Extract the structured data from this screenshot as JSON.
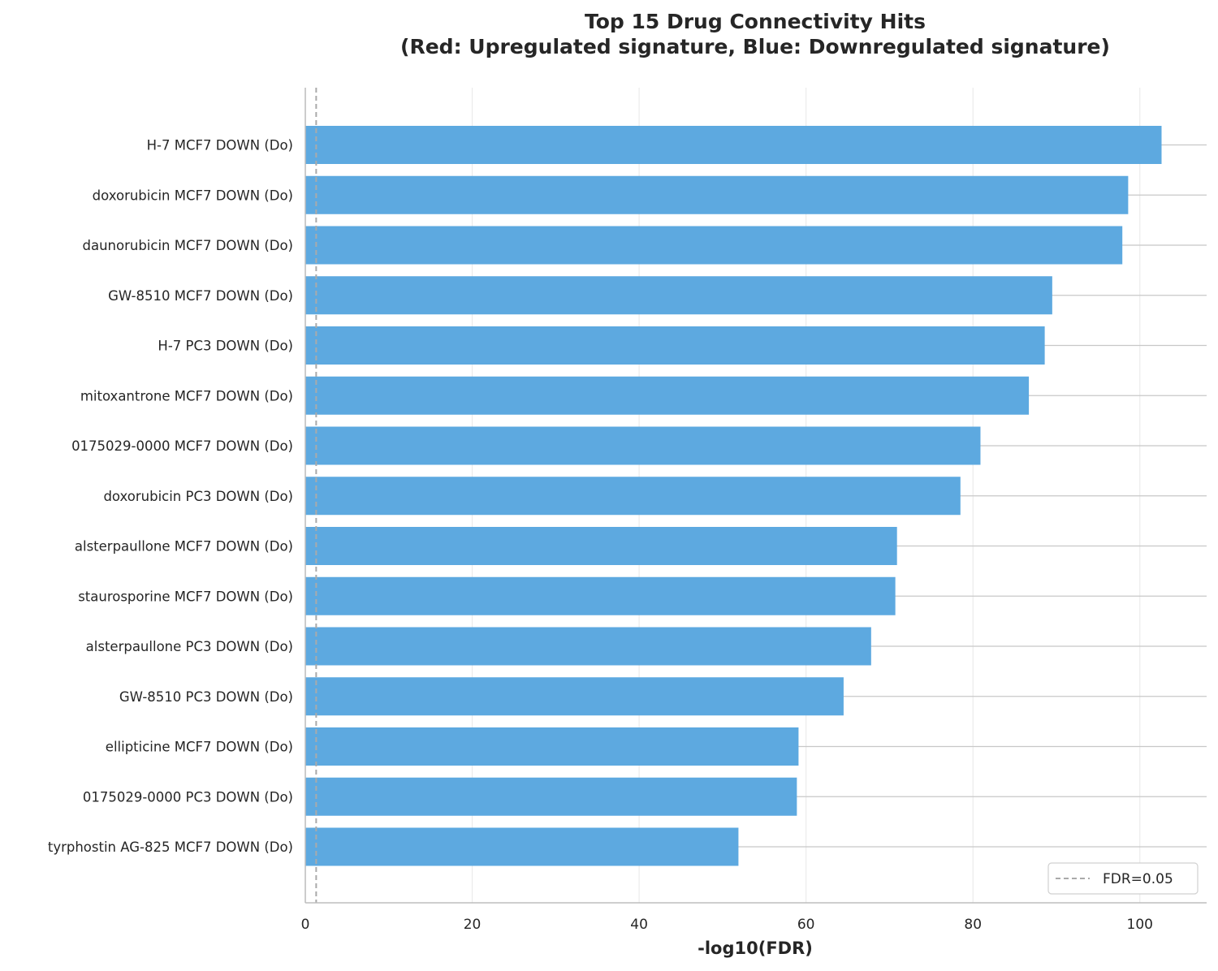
{
  "chart_data": {
    "type": "bar",
    "orientation": "horizontal",
    "title": "Top 15 Drug Connectivity Hits",
    "subtitle": "(Red: Upregulated signature, Blue: Downregulated signature)",
    "xlabel": "-log10(FDR)",
    "ylabel": "",
    "xlim": [
      0,
      108
    ],
    "xticks": [
      0,
      20,
      40,
      60,
      80,
      100
    ],
    "grid": true,
    "bar_color": "#5DA9E0",
    "threshold": {
      "label": "FDR=0.05",
      "value": 1.3,
      "color": "#aaaaaa",
      "style": "dashed"
    },
    "legend": {
      "position": "bottom-right",
      "entries": [
        "FDR=0.05"
      ]
    },
    "categories": [
      "H-7 MCF7 DOWN (Do)",
      "doxorubicin MCF7 DOWN (Do)",
      "daunorubicin MCF7 DOWN (Do)",
      "GW-8510 MCF7 DOWN (Do)",
      "H-7 PC3 DOWN (Do)",
      "mitoxantrone MCF7 DOWN (Do)",
      "0175029-0000 MCF7 DOWN (Do)",
      "doxorubicin PC3 DOWN (Do)",
      "alsterpaullone MCF7 DOWN (Do)",
      "staurosporine MCF7 DOWN (Do)",
      "alsterpaullone PC3 DOWN (Do)",
      "GW-8510 PC3 DOWN (Do)",
      "ellipticine MCF7 DOWN (Do)",
      "0175029-0000 PC3 DOWN (Do)",
      "tyrphostin AG-825 MCF7 DOWN (Do)"
    ],
    "values": [
      102.6,
      98.6,
      97.9,
      89.5,
      88.6,
      86.7,
      80.9,
      78.5,
      70.9,
      70.7,
      67.8,
      64.5,
      59.1,
      58.9,
      51.9
    ]
  }
}
